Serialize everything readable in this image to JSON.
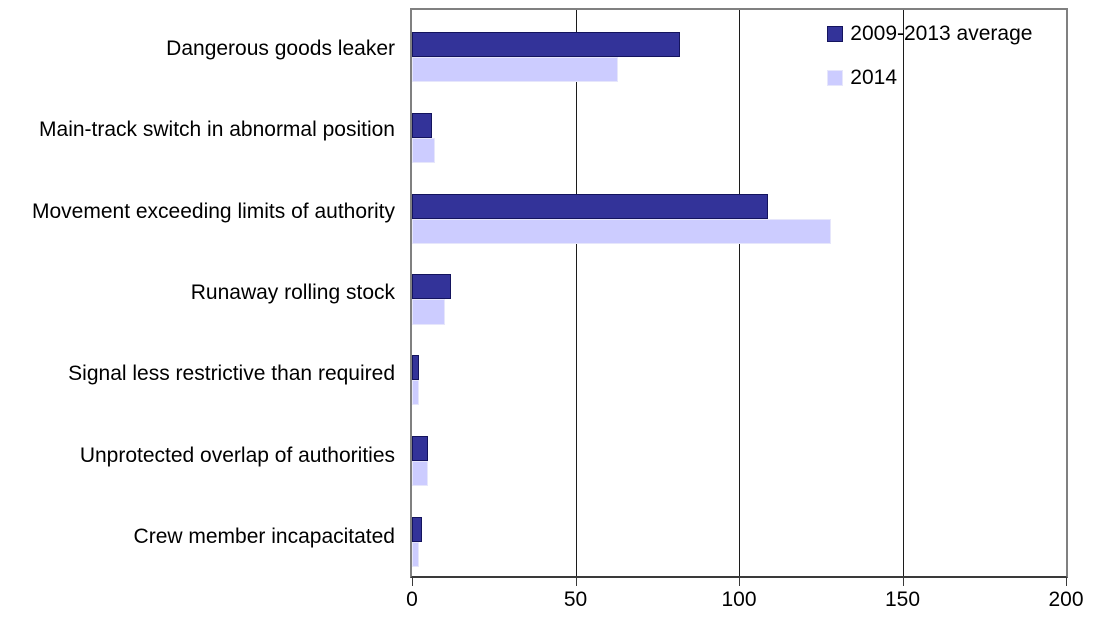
{
  "chart_data": {
    "type": "bar",
    "orientation": "horizontal",
    "title": "",
    "categories": [
      "Dangerous goods leaker",
      "Main-track switch in abnormal position",
      "Movement exceeding limits of authority",
      "Runaway rolling stock",
      "Signal less restrictive than required",
      "Unprotected overlap of authorities",
      "Crew member incapacitated"
    ],
    "series": [
      {
        "name": "2009-2013 average",
        "color": "#333399",
        "values": [
          82,
          6,
          109,
          12,
          2,
          5,
          3
        ]
      },
      {
        "name": "2014",
        "color": "#ccccff",
        "values": [
          63,
          7,
          128,
          10,
          2,
          5,
          2
        ]
      }
    ],
    "xlim": [
      0,
      200
    ],
    "x_ticks": [
      0,
      50,
      100,
      150,
      200
    ],
    "xlabel": "",
    "ylabel": "",
    "grid": true,
    "legend_position": "top-right-inside"
  },
  "colors": {
    "series1_fill": "#333399",
    "series1_border": "#14145e",
    "series2_fill": "#ccccff",
    "series2_border": "#e6e6fb",
    "plot_border": "#808080",
    "gridline": "#1c1c1c",
    "axis_line": "#3a3a3a",
    "text": "#000000",
    "background": "#ffffff"
  }
}
